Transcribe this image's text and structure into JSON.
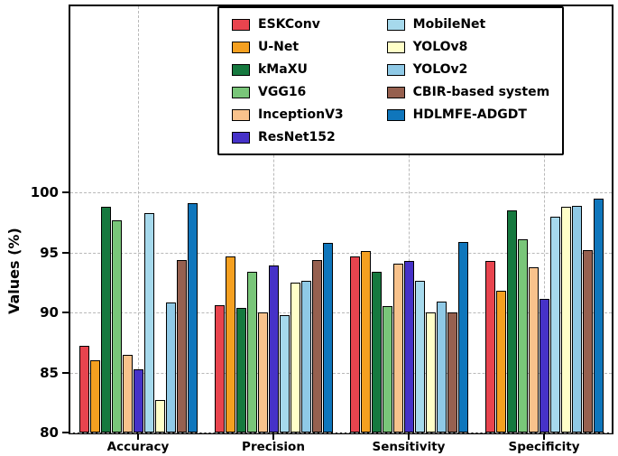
{
  "chart_data": {
    "type": "bar",
    "title": "",
    "xlabel": "",
    "ylabel": "Values (%)",
    "ylim": [
      80,
      100
    ],
    "ylim_drawn": [
      80,
      115.5
    ],
    "yticks": [
      80,
      85,
      90,
      95,
      100
    ],
    "grid": "dashed, horizontal and vertical",
    "legend_position": "upper center inside plot, two columns, black border",
    "categories": [
      "Accuracy",
      "Precision",
      "Sensitivity",
      "Specificity"
    ],
    "series": [
      {
        "name": "ESKConv",
        "color": "#e8444e",
        "values": [
          87.2,
          90.6,
          94.7,
          94.3
        ]
      },
      {
        "name": "U-Net",
        "color": "#f5a020",
        "values": [
          86.0,
          94.7,
          95.1,
          91.8
        ]
      },
      {
        "name": "kMaXU",
        "color": "#16793f",
        "values": [
          98.8,
          90.4,
          93.4,
          98.5
        ]
      },
      {
        "name": "VGG16",
        "color": "#79c679",
        "values": [
          97.7,
          93.4,
          90.5,
          96.1
        ]
      },
      {
        "name": "InceptionV3",
        "color": "#f8c28c",
        "values": [
          86.5,
          90.0,
          94.1,
          93.8
        ]
      },
      {
        "name": "ResNet152",
        "color": "#4632c8",
        "values": [
          85.3,
          93.9,
          94.3,
          91.1
        ]
      },
      {
        "name": "MobileNet",
        "color": "#a6d9ec",
        "values": [
          98.3,
          89.8,
          92.6,
          98.0
        ]
      },
      {
        "name": "YOLOv8",
        "color": "#ffffc8",
        "values": [
          82.7,
          92.5,
          90.0,
          98.8
        ]
      },
      {
        "name": "YOLOv2",
        "color": "#8fc9e6",
        "values": [
          90.8,
          92.6,
          90.9,
          98.9
        ]
      },
      {
        "name": "CBIR-based system",
        "color": "#96604f",
        "values": [
          94.4,
          94.4,
          90.0,
          95.2
        ]
      },
      {
        "name": "HDLMFE-ADGDT",
        "color": "#0f76bc",
        "values": [
          99.1,
          95.8,
          95.9,
          99.5
        ]
      }
    ]
  }
}
